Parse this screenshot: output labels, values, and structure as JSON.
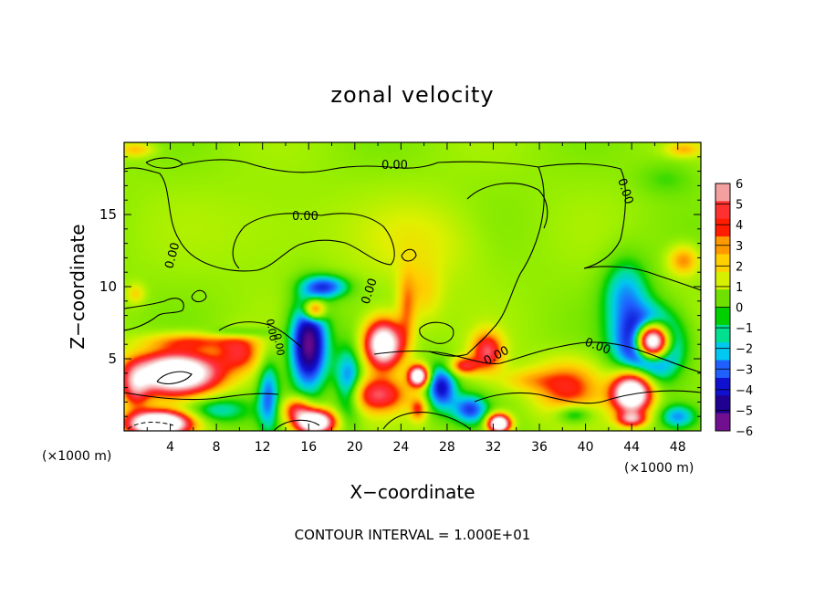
{
  "chart_data": {
    "type": "heatmap",
    "title": "zonal velocity",
    "xlabel": "X−coordinate",
    "ylabel": "Z−coordinate",
    "x_unit_label": "(×1000 m)",
    "x_unit_label_right": "(×1000 m)",
    "xlim": [
      0,
      50
    ],
    "ylim": [
      0,
      20
    ],
    "x_ticks": [
      4,
      8,
      12,
      16,
      20,
      24,
      28,
      32,
      36,
      40,
      44,
      48
    ],
    "y_ticks": [
      5,
      10,
      15
    ],
    "colorbar": {
      "ticks": [
        6,
        5,
        4,
        3,
        2,
        1,
        0,
        -1,
        -2,
        -3,
        -4,
        -5,
        -6
      ],
      "tick_labels": [
        "6",
        "5",
        "4",
        "3",
        "2",
        "1",
        "0",
        "−1",
        "−2",
        "−3",
        "−4",
        "−5",
        "−6"
      ],
      "colors": [
        "#f5a0a0",
        "#ff3030",
        "#ff1c00",
        "#ff9900",
        "#ffd000",
        "#d6f000",
        "#70e000",
        "#00d000",
        "#00e090",
        "#00c8f0",
        "#2060ff",
        "#1010d0",
        "#200090",
        "#701090"
      ]
    },
    "contour_labels": [
      "0.00",
      "0.00",
      "0.00",
      "0.00",
      "0.00",
      "0.00",
      "0.00",
      "0.00",
      "0.00"
    ],
    "footer": "CONTOUR INTERVAL = 1.000E+01",
    "blobs": [
      {
        "x": 4.5,
        "z": 4.0,
        "sx": 3.6,
        "sz": 1.4,
        "v": 14
      },
      {
        "x": 10,
        "z": 5.4,
        "sx": 1.8,
        "sz": 1.2,
        "v": 4.5
      },
      {
        "x": 6,
        "z": 6.2,
        "sx": 4,
        "sz": 0.6,
        "v": 3.5
      },
      {
        "x": 1,
        "z": 3.0,
        "sx": 1.2,
        "sz": 1.5,
        "v": 5
      },
      {
        "x": 3,
        "z": 0.5,
        "sx": 2.5,
        "sz": 0.8,
        "v": 16
      },
      {
        "x": 8,
        "z": 1.5,
        "sx": 3,
        "sz": 1,
        "v": -2.5
      },
      {
        "x": 12.5,
        "z": 2.5,
        "sx": 0.9,
        "sz": 2.5,
        "v": -3.5
      },
      {
        "x": 16,
        "z": 6.0,
        "sx": 1.6,
        "sz": 3.0,
        "v": -7
      },
      {
        "x": 16.5,
        "z": 8.4,
        "sx": 0.9,
        "sz": 0.7,
        "v": 6
      },
      {
        "x": 17.5,
        "z": 10,
        "sx": 2,
        "sz": 0.8,
        "v": -4
      },
      {
        "x": 16.5,
        "z": 0.6,
        "sx": 1.6,
        "sz": 0.8,
        "v": 14
      },
      {
        "x": 15,
        "z": 1.5,
        "sx": 1.2,
        "sz": 0.8,
        "v": 5
      },
      {
        "x": 19.5,
        "z": 3.2,
        "sx": 1.2,
        "sz": 2.5,
        "v": -4
      },
      {
        "x": 22.5,
        "z": 6.0,
        "sx": 1.6,
        "sz": 1.6,
        "v": 12
      },
      {
        "x": 22,
        "z": 2.5,
        "sx": 2.5,
        "sz": 1.2,
        "v": 6
      },
      {
        "x": 24.5,
        "z": 8.5,
        "sx": 0.8,
        "sz": 2.5,
        "v": 3
      },
      {
        "x": 25.5,
        "z": 3.8,
        "sx": 0.8,
        "sz": 0.7,
        "v": 12
      },
      {
        "x": 25.5,
        "z": 1.5,
        "sx": 0.7,
        "sz": 0.8,
        "v": 4
      },
      {
        "x": 27.5,
        "z": 3.0,
        "sx": 1.3,
        "sz": 1.5,
        "v": -5
      },
      {
        "x": 29.5,
        "z": 4.5,
        "sx": 1.2,
        "sz": 0.6,
        "v": 5
      },
      {
        "x": 31.5,
        "z": 5.5,
        "sx": 1.3,
        "sz": 1.3,
        "v": 6
      },
      {
        "x": 30,
        "z": 1.5,
        "sx": 1.5,
        "sz": 1.0,
        "v": -4
      },
      {
        "x": 32.5,
        "z": 0.5,
        "sx": 0.9,
        "sz": 0.6,
        "v": 14
      },
      {
        "x": 35,
        "z": 3.5,
        "sx": 2.5,
        "sz": 0.8,
        "v": 2
      },
      {
        "x": 38.5,
        "z": 3.0,
        "sx": 2.8,
        "sz": 1.8,
        "v": 4.5
      },
      {
        "x": 39,
        "z": 1.2,
        "sx": 1.6,
        "sz": 0.7,
        "v": -3
      },
      {
        "x": 44,
        "z": 2.6,
        "sx": 1.6,
        "sz": 1.3,
        "v": 14
      },
      {
        "x": 45.5,
        "z": 6.0,
        "sx": 2.6,
        "sz": 2.2,
        "v": -8
      },
      {
        "x": 45.8,
        "z": 6.2,
        "sx": 1.3,
        "sz": 1.1,
        "v": 18
      },
      {
        "x": 43.5,
        "z": 9.5,
        "sx": 2.0,
        "sz": 2.5,
        "v": -3
      },
      {
        "x": 48.5,
        "z": 11.8,
        "sx": 1.3,
        "sz": 1.0,
        "v": 3.5
      },
      {
        "x": 48,
        "z": 1.0,
        "sx": 1.5,
        "sz": 0.8,
        "v": -3
      },
      {
        "x": 44,
        "z": 0.8,
        "sx": 1.2,
        "sz": 0.5,
        "v": 6
      },
      {
        "x": 1,
        "z": 19.5,
        "sx": 1.5,
        "sz": 0.5,
        "v": 2.5
      },
      {
        "x": 48.5,
        "z": 19.5,
        "sx": 1.5,
        "sz": 0.5,
        "v": 2.5
      },
      {
        "x": 47,
        "z": 17.5,
        "sx": 2.5,
        "sz": 1.2,
        "v": -1
      },
      {
        "x": 10,
        "z": 6.8,
        "sx": 2.5,
        "sz": 0.4,
        "v": -2
      },
      {
        "x": 26,
        "z": 9.5,
        "sx": 1.5,
        "sz": 2.0,
        "v": 1.8
      },
      {
        "x": 13,
        "z": 14,
        "sx": 6,
        "sz": 3,
        "v": 0.6
      },
      {
        "x": 26,
        "z": 13,
        "sx": 5,
        "sz": 3,
        "v": 1.3
      },
      {
        "x": 1,
        "z": 9.5,
        "sx": 0.8,
        "sz": 0.7,
        "v": 2
      }
    ]
  }
}
